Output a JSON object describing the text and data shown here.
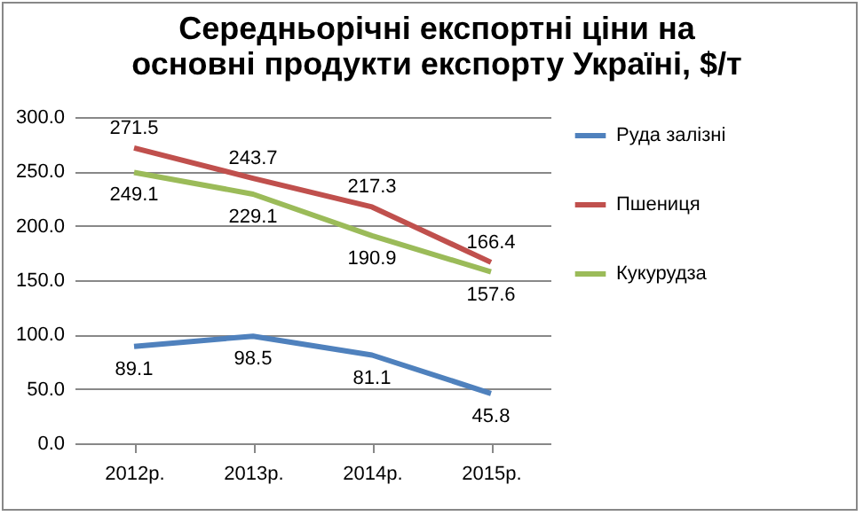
{
  "chart_data": {
    "type": "line",
    "title": "Середньорічні експортні ціни на основні продукти експорту Україні, $/т",
    "categories": [
      "2012р.",
      "2013р.",
      "2014р.",
      "2015р."
    ],
    "series": [
      {
        "name": "Руда залізні",
        "color": "#4f81bd",
        "values": [
          89.1,
          98.5,
          81.1,
          45.8
        ]
      },
      {
        "name": "Пшениця",
        "color": "#c0504d",
        "values": [
          271.5,
          243.7,
          217.3,
          166.4
        ]
      },
      {
        "name": "Кукурудза",
        "color": "#9bbb59",
        "values": [
          249.1,
          229.1,
          190.9,
          157.6
        ]
      }
    ],
    "ylim": [
      0,
      300
    ],
    "yticks": [
      {
        "value": 0,
        "label": "0.0"
      },
      {
        "value": 50,
        "label": "50.0"
      },
      {
        "value": 100,
        "label": "100.0"
      },
      {
        "value": 150,
        "label": "150.0"
      },
      {
        "value": 200,
        "label": "200.0"
      },
      {
        "value": 250,
        "label": "250.0"
      },
      {
        "value": 300,
        "label": "300.0"
      }
    ],
    "grid": "y",
    "legend": "right",
    "data_labels": true,
    "marker": "none",
    "line_style": "solid"
  }
}
